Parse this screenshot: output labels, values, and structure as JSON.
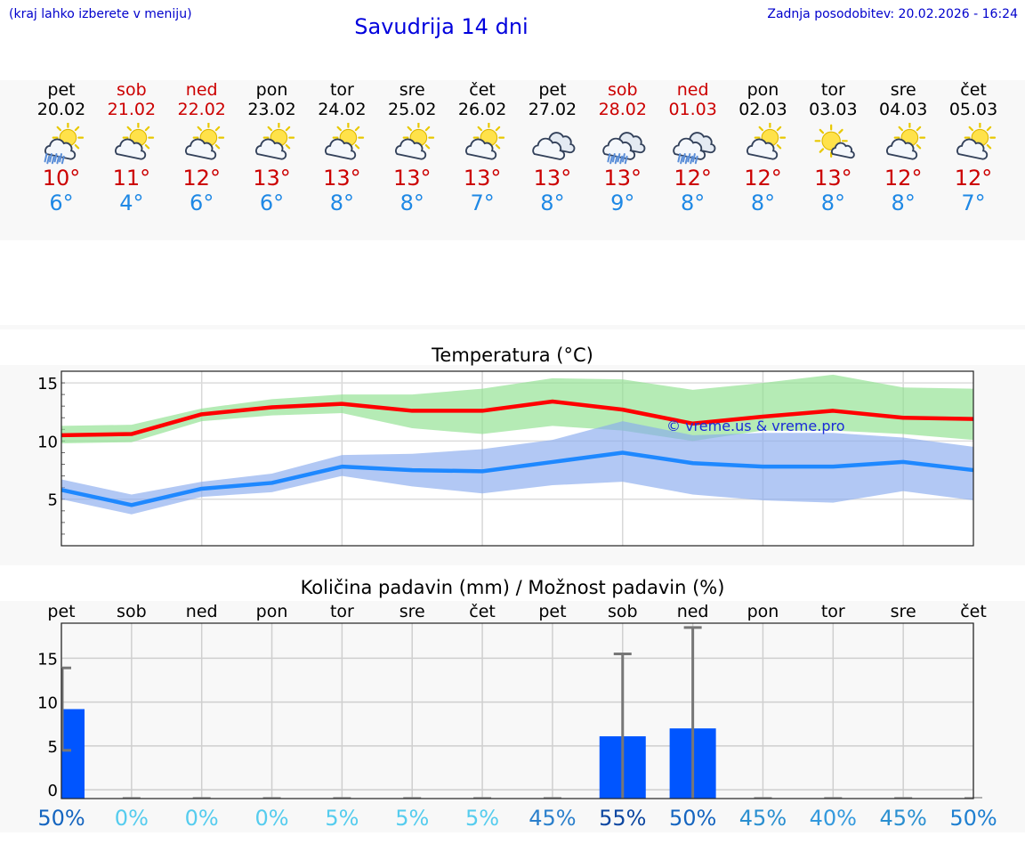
{
  "header": {
    "menu_hint": "(kraj lahko izberete v meniju)",
    "title": "Savudrija 14 dni",
    "last_update": "Zadnja posodobitev: 20.02.2026 - 16:24"
  },
  "days": [
    {
      "weekday": "pet",
      "date": "20.02",
      "weekend": false,
      "icon": "sun-cloud-rain-icon",
      "tmax": "10°",
      "tmin": "6°"
    },
    {
      "weekday": "sob",
      "date": "21.02",
      "weekend": true,
      "icon": "sun-cloud-icon",
      "tmax": "11°",
      "tmin": "4°"
    },
    {
      "weekday": "ned",
      "date": "22.02",
      "weekend": true,
      "icon": "sun-cloud-icon",
      "tmax": "12°",
      "tmin": "6°"
    },
    {
      "weekday": "pon",
      "date": "23.02",
      "weekend": false,
      "icon": "sun-cloud-icon",
      "tmax": "13°",
      "tmin": "6°"
    },
    {
      "weekday": "tor",
      "date": "24.02",
      "weekend": false,
      "icon": "sun-cloud-icon",
      "tmax": "13°",
      "tmin": "8°"
    },
    {
      "weekday": "sre",
      "date": "25.02",
      "weekend": false,
      "icon": "sun-cloud-icon",
      "tmax": "13°",
      "tmin": "8°"
    },
    {
      "weekday": "čet",
      "date": "26.02",
      "weekend": false,
      "icon": "sun-cloud-icon",
      "tmax": "13°",
      "tmin": "7°"
    },
    {
      "weekday": "pet",
      "date": "27.02",
      "weekend": false,
      "icon": "cloud-icon",
      "tmax": "13°",
      "tmin": "8°"
    },
    {
      "weekday": "sob",
      "date": "28.02",
      "weekend": true,
      "icon": "cloud-rain-icon",
      "tmax": "13°",
      "tmin": "9°"
    },
    {
      "weekday": "ned",
      "date": "01.03",
      "weekend": true,
      "icon": "cloud-rain-icon",
      "tmax": "12°",
      "tmin": "8°"
    },
    {
      "weekday": "pon",
      "date": "02.03",
      "weekend": false,
      "icon": "sun-cloud-icon",
      "tmax": "12°",
      "tmin": "8°"
    },
    {
      "weekday": "tor",
      "date": "03.03",
      "weekend": false,
      "icon": "sun-small-cloud-icon",
      "tmax": "13°",
      "tmin": "8°"
    },
    {
      "weekday": "sre",
      "date": "04.03",
      "weekend": false,
      "icon": "sun-cloud-icon",
      "tmax": "12°",
      "tmin": "8°"
    },
    {
      "weekday": "čet",
      "date": "05.03",
      "weekend": false,
      "icon": "sun-cloud-icon",
      "tmax": "12°",
      "tmin": "7°"
    }
  ],
  "chart_data": [
    {
      "type": "line",
      "title": "Temperatura (°C)",
      "watermark": "© vreme.us & vreme.pro",
      "ylim": [
        1,
        16
      ],
      "yticks": [
        5,
        10,
        15
      ],
      "x": [
        0,
        1,
        2,
        3,
        4,
        5,
        6,
        7,
        8,
        9,
        10,
        11,
        12,
        13
      ],
      "series": [
        {
          "name": "max",
          "color": "#ff0000",
          "values": [
            10.5,
            10.6,
            12.3,
            12.9,
            13.2,
            12.6,
            12.6,
            13.4,
            12.7,
            11.5,
            12.1,
            12.6,
            12.0,
            11.9
          ]
        },
        {
          "name": "min",
          "color": "#1e88ff",
          "values": [
            5.8,
            4.5,
            5.9,
            6.4,
            7.8,
            7.5,
            7.4,
            8.2,
            9.0,
            8.1,
            7.8,
            7.8,
            8.2,
            7.5
          ]
        }
      ],
      "bands": [
        {
          "name": "max-range",
          "color": "#8ee08e",
          "upper": [
            11.3,
            11.4,
            12.8,
            13.6,
            14.0,
            14.0,
            14.5,
            15.4,
            15.3,
            14.4,
            15.0,
            15.7,
            14.6,
            14.5
          ],
          "lower": [
            9.8,
            9.9,
            11.7,
            12.2,
            12.4,
            11.1,
            10.6,
            11.3,
            10.9,
            10.0,
            10.9,
            10.9,
            10.6,
            10.1
          ]
        },
        {
          "name": "min-range",
          "color": "#88aaee",
          "upper": [
            6.7,
            5.4,
            6.5,
            7.2,
            8.8,
            8.9,
            9.3,
            10.1,
            11.7,
            10.5,
            10.7,
            10.7,
            10.3,
            9.5
          ],
          "lower": [
            5.0,
            3.7,
            5.2,
            5.6,
            7.0,
            6.1,
            5.5,
            6.2,
            6.5,
            5.4,
            4.9,
            4.7,
            5.7,
            4.9
          ]
        }
      ]
    },
    {
      "type": "bar",
      "title": "Količina padavin (mm) / Možnost padavin (%)",
      "ylim": [
        -1,
        19
      ],
      "yticks": [
        0,
        5,
        10,
        15
      ],
      "categories": [
        "pet",
        "sob",
        "ned",
        "pon",
        "tor",
        "sre",
        "čet",
        "pet",
        "sob",
        "ned",
        "pon",
        "tor",
        "sre",
        "čet"
      ],
      "values": [
        9.2,
        0,
        0,
        0,
        0,
        0,
        0,
        0,
        6.1,
        7.0,
        0,
        0,
        0,
        0
      ],
      "error_upper": [
        13.9,
        0,
        0,
        0,
        0,
        0,
        0,
        0,
        15.5,
        18.5,
        0,
        0,
        0,
        0
      ],
      "error_lower": [
        4.5,
        0,
        0,
        0,
        0,
        0,
        0,
        0,
        0,
        0,
        0,
        0,
        0,
        0
      ],
      "probability": [
        "50%",
        "0%",
        "0%",
        "0%",
        "5%",
        "5%",
        "5%",
        "45%",
        "55%",
        "50%",
        "45%",
        "40%",
        "45%",
        "50%"
      ],
      "probability_colors": [
        "#1565c0",
        "#55ccee",
        "#55ccee",
        "#55ccee",
        "#55ccee",
        "#55ccee",
        "#55ccee",
        "#2a7fcc",
        "#0d47a1",
        "#1565c0",
        "#2a8fd0",
        "#3399dd",
        "#2a8fd0",
        "#1e7fd0"
      ]
    }
  ]
}
